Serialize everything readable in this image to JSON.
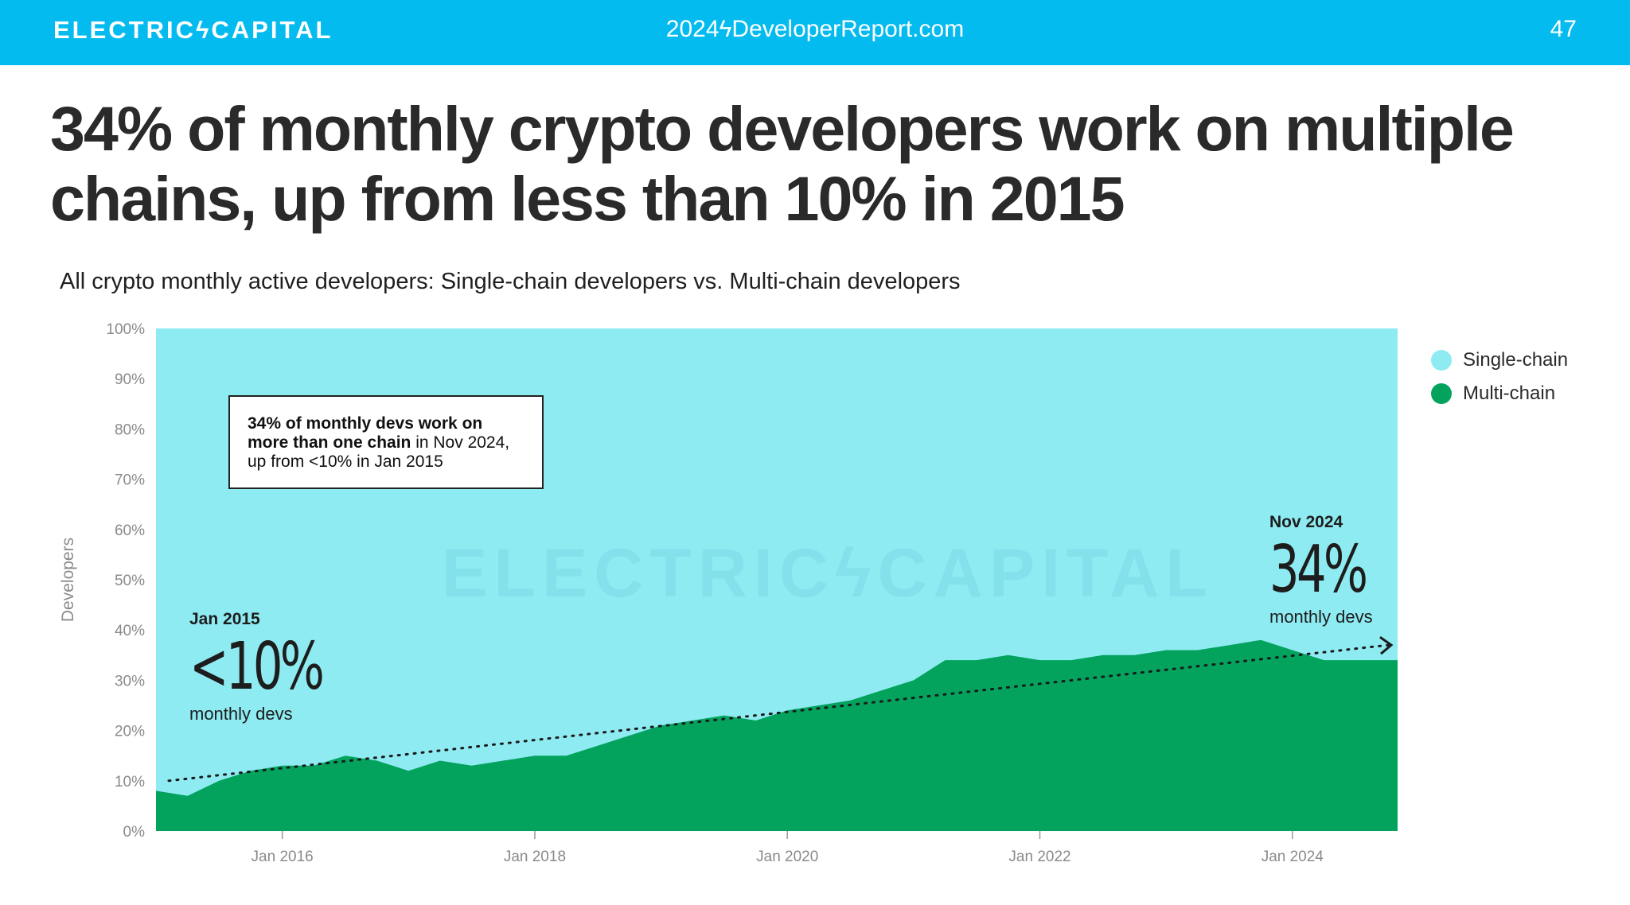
{
  "header": {
    "brand": "ELECTRICϟCAPITAL",
    "site": "2024ϟDeveloperReport.com",
    "page_number": "47"
  },
  "headline": "34% of monthly crypto developers work on multiple chains, up from less than 10% in 2015",
  "annotation": {
    "bold_text": "34% of monthly devs work on more than one chain",
    "rest_text": " in Nov 2024, up from <10% in Jan 2015"
  },
  "callout_start": {
    "date": "Jan 2015",
    "value": "<10%",
    "unit": "monthly devs"
  },
  "callout_end": {
    "date": "Nov 2024",
    "value": "34%",
    "unit": "monthly devs"
  },
  "watermark": "ELECTRICϟCAPITAL",
  "colors": {
    "brand_bar": "#04BBEF",
    "single_chain": "#8EEBF2",
    "multi_chain": "#03A35E",
    "text": "#222222"
  },
  "chart_data": {
    "type": "area",
    "stacked": true,
    "normalized": true,
    "title": "All crypto monthly active developers: Single-chain developers vs. Multi-chain developers",
    "xlabel": "",
    "ylabel": "Developers",
    "ylim": [
      0,
      100
    ],
    "y_ticks": [
      "0%",
      "10%",
      "20%",
      "30%",
      "40%",
      "50%",
      "60%",
      "70%",
      "80%",
      "90%",
      "100%"
    ],
    "x_ticks": [
      "Jan 2016",
      "Jan 2018",
      "Jan 2020",
      "Jan 2022",
      "Jan 2024"
    ],
    "x_range": [
      "2015-01",
      "2024-11"
    ],
    "legend_position": "right",
    "series": [
      {
        "name": "Multi-chain",
        "unit": "% of monthly devs",
        "x": [
          "2015-01",
          "2015-04",
          "2015-07",
          "2015-10",
          "2016-01",
          "2016-04",
          "2016-07",
          "2016-10",
          "2017-01",
          "2017-04",
          "2017-07",
          "2017-10",
          "2018-01",
          "2018-04",
          "2018-07",
          "2018-10",
          "2019-01",
          "2019-04",
          "2019-07",
          "2019-10",
          "2020-01",
          "2020-04",
          "2020-07",
          "2020-10",
          "2021-01",
          "2021-04",
          "2021-07",
          "2021-10",
          "2022-01",
          "2022-04",
          "2022-07",
          "2022-10",
          "2023-01",
          "2023-04",
          "2023-07",
          "2023-10",
          "2024-01",
          "2024-04",
          "2024-07",
          "2024-11"
        ],
        "values": [
          8,
          7,
          10,
          12,
          13,
          13,
          15,
          14,
          12,
          14,
          13,
          14,
          15,
          15,
          17,
          19,
          21,
          22,
          23,
          22,
          24,
          25,
          26,
          28,
          30,
          34,
          34,
          35,
          34,
          34,
          35,
          35,
          36,
          36,
          37,
          38,
          36,
          34,
          34,
          34
        ]
      },
      {
        "name": "Single-chain",
        "unit": "% of monthly devs",
        "x": [
          "2015-01",
          "2024-11"
        ],
        "values": [
          92,
          66
        ]
      }
    ],
    "trendline": {
      "from": [
        "2015-01",
        10
      ],
      "to": [
        "2024-11",
        37
      ],
      "style": "dotted"
    }
  }
}
